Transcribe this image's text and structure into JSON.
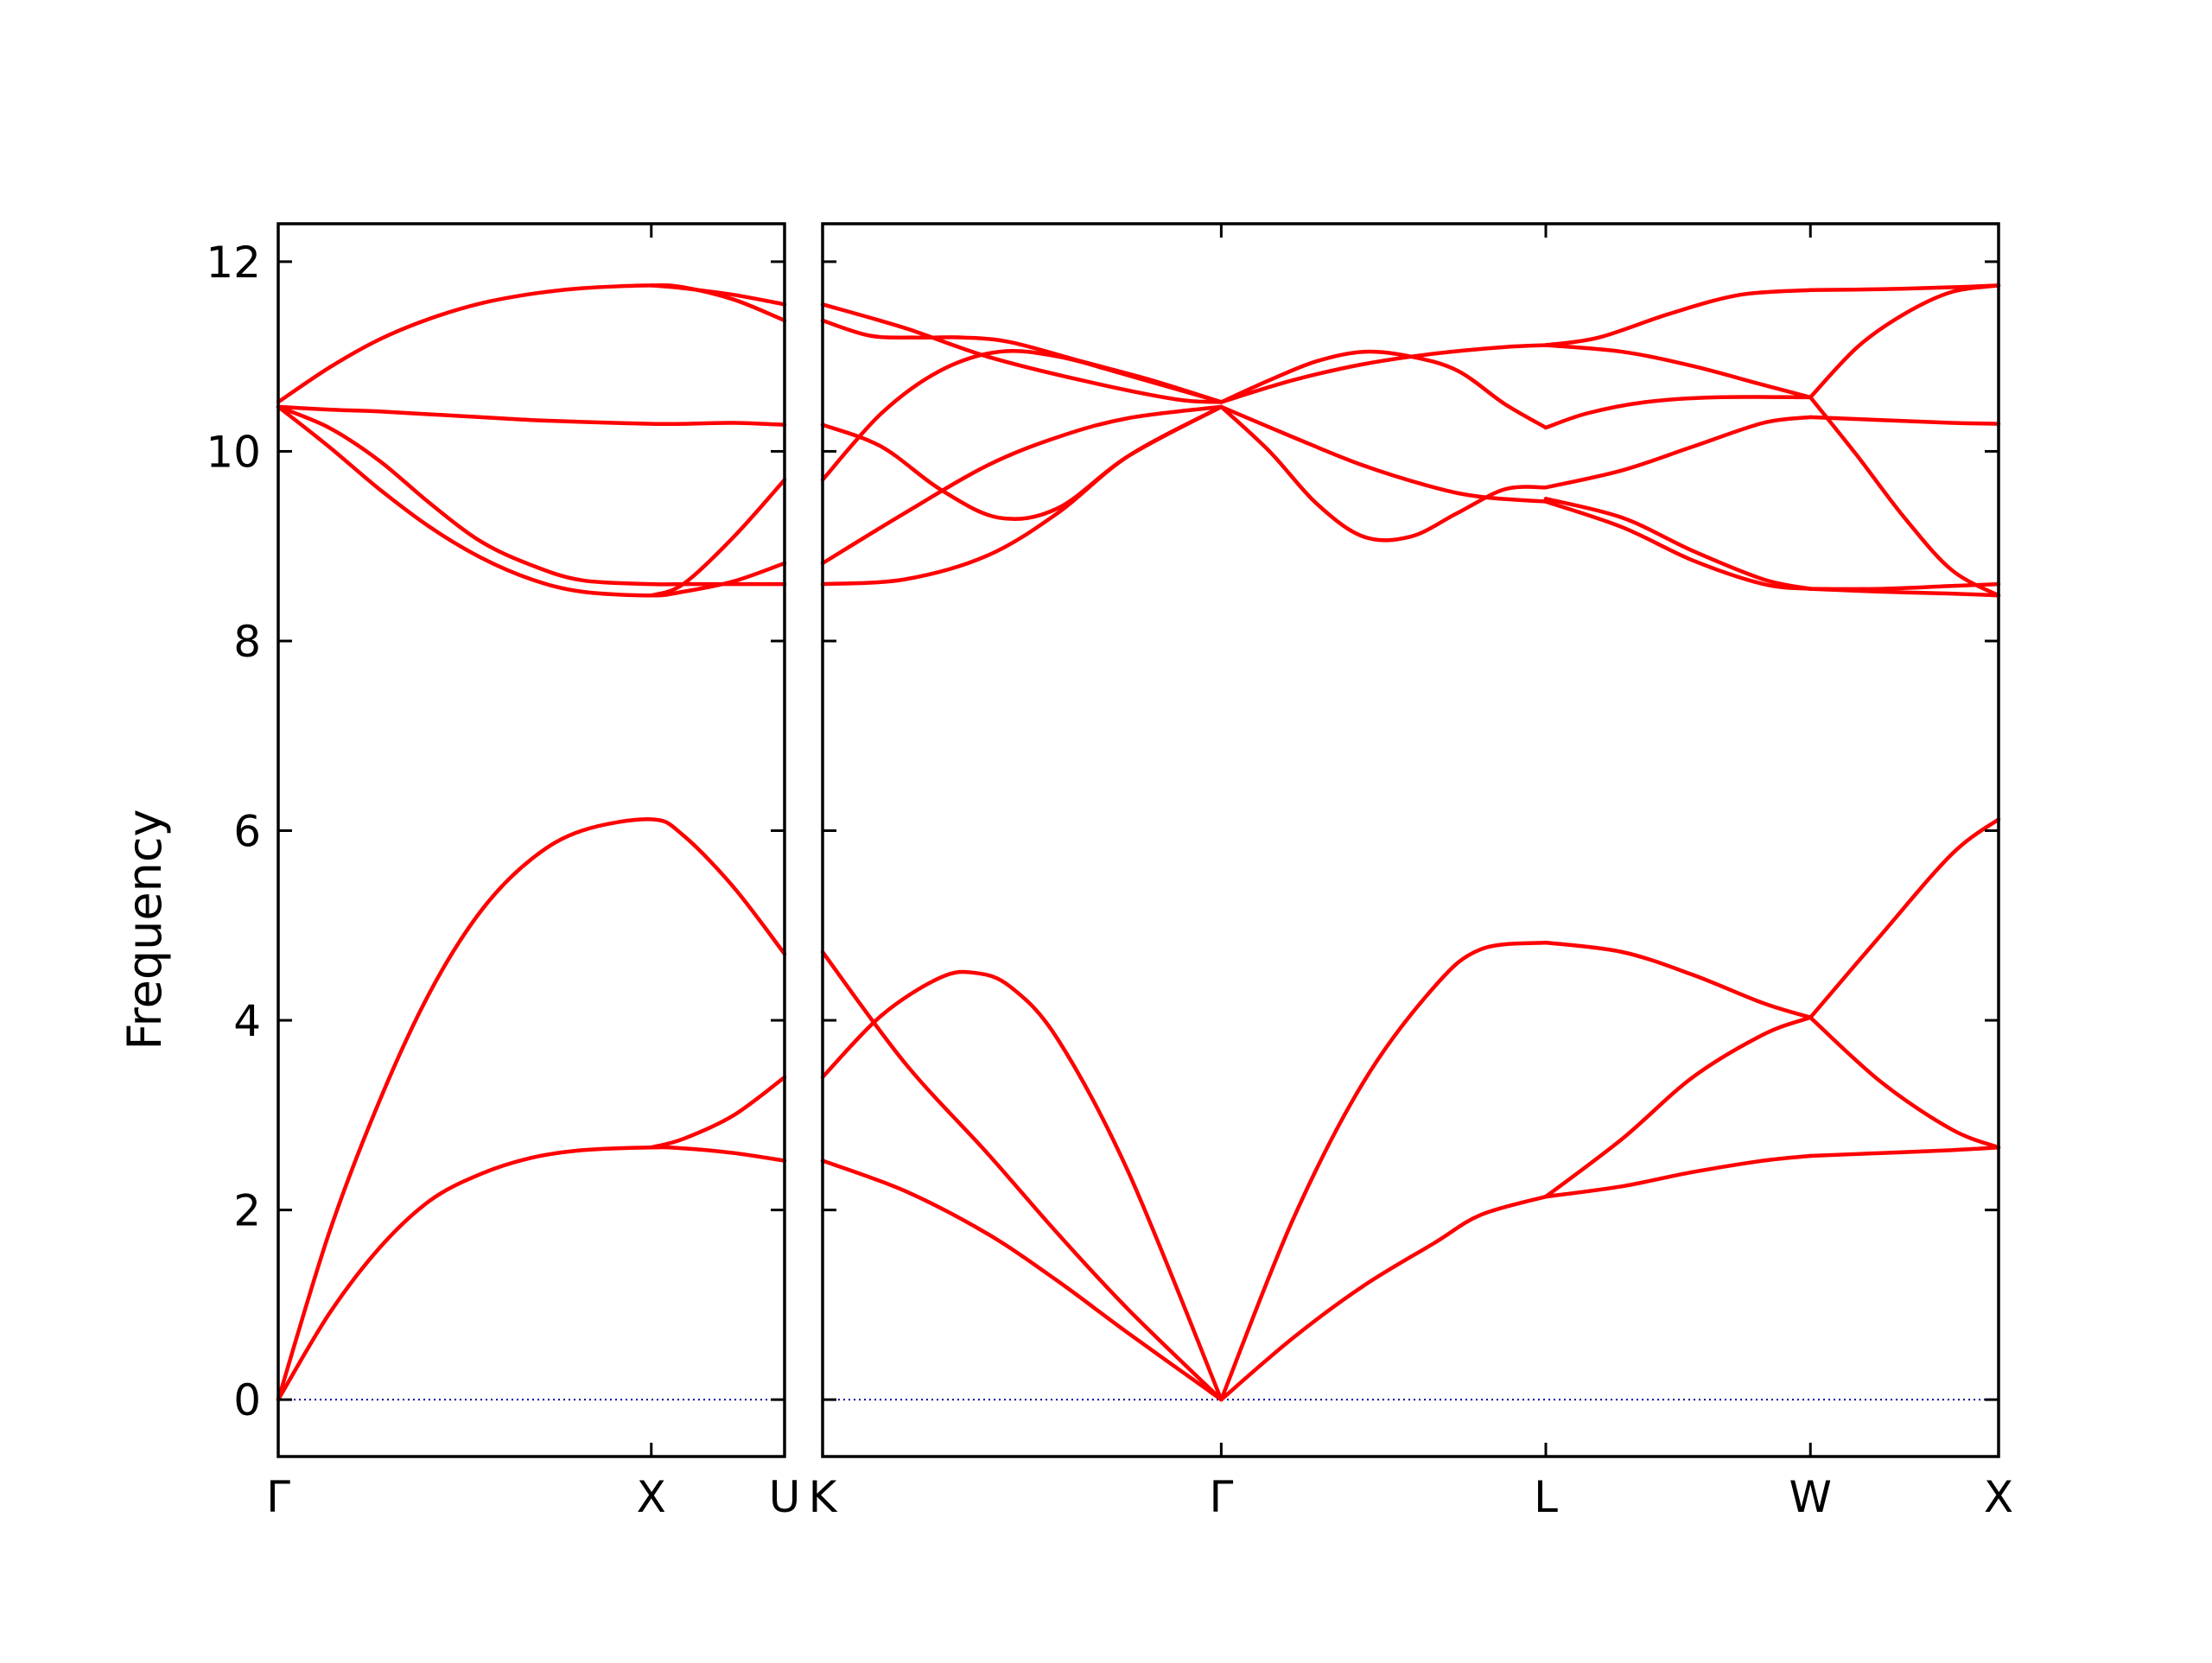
{
  "chart_data": {
    "type": "line",
    "title": "",
    "ylabel": "Frequency",
    "ylim": [
      -0.6,
      12.4
    ],
    "yticks": [
      0,
      2,
      4,
      6,
      8,
      10,
      12
    ],
    "colors": {
      "bands": "#ff0000",
      "zero_line": "#0000aa",
      "axes": "#000000"
    },
    "grid": false,
    "panels": [
      {
        "name": "Γ-X-U",
        "xlim": [
          0,
          1
        ],
        "tick_positions": [
          0,
          0.7368,
          1
        ],
        "tick_labels": [
          "Γ",
          "X",
          "U"
        ],
        "series": [
          {
            "x": [
              0,
              0.1,
              0.2,
              0.3,
              0.4,
              0.5,
              0.6,
              0.7368,
              0.8,
              0.9,
              1
            ],
            "y": [
              0,
              0.9,
              1.6,
              2.1,
              2.38,
              2.55,
              2.63,
              2.66,
              2.65,
              2.6,
              2.52
            ]
          },
          {
            "x": [
              0,
              0.1,
              0.2,
              0.3,
              0.4,
              0.5,
              0.6,
              0.7368,
              0.8,
              0.9,
              1
            ],
            "y": [
              0,
              1.75,
              3.15,
              4.3,
              5.15,
              5.7,
              6.0,
              6.12,
              5.95,
              5.4,
              4.7
            ]
          },
          {
            "x": [
              0,
              0.1,
              0.2,
              0.3,
              0.4,
              0.5,
              0.6,
              0.7368,
              0.8,
              0.9,
              1
            ],
            "y": [
              10.47,
              10.05,
              9.6,
              9.2,
              8.88,
              8.65,
              8.52,
              8.48,
              8.52,
              8.63,
              8.82
            ]
          },
          {
            "x": [
              0,
              0.1,
              0.2,
              0.3,
              0.4,
              0.5,
              0.6,
              0.7368,
              0.8,
              0.9,
              1
            ],
            "y": [
              10.47,
              10.25,
              9.9,
              9.45,
              9.05,
              8.8,
              8.64,
              8.6,
              8.6,
              8.6,
              8.6
            ]
          },
          {
            "x": [
              0,
              0.1,
              0.2,
              0.3,
              0.4,
              0.5,
              0.6,
              0.7368,
              0.8,
              0.9,
              1
            ],
            "y": [
              10.47,
              10.44,
              10.42,
              10.39,
              10.36,
              10.33,
              10.31,
              10.29,
              10.29,
              10.3,
              10.28
            ]
          },
          {
            "x": [
              0,
              0.1,
              0.2,
              0.3,
              0.4,
              0.5,
              0.6,
              0.7368,
              0.8,
              0.9,
              1
            ],
            "y": [
              10.52,
              10.88,
              11.18,
              11.4,
              11.56,
              11.66,
              11.72,
              11.75,
              11.73,
              11.6,
              11.38
            ]
          },
          {
            "x": [
              0.7368,
              0.8,
              0.9,
              1
            ],
            "y": [
              8.48,
              8.6,
              9.1,
              9.7
            ]
          },
          {
            "x": [
              0.7368,
              0.8,
              0.9,
              1
            ],
            "y": [
              2.66,
              2.75,
              3.0,
              3.4
            ]
          },
          {
            "x": [
              0.7368,
              0.8,
              0.9,
              1
            ],
            "y": [
              11.75,
              11.72,
              11.65,
              11.55
            ]
          }
        ]
      },
      {
        "name": "K-Γ-L-W-X",
        "xlim": [
          0,
          1
        ],
        "tick_positions": [
          0,
          0.339,
          0.615,
          0.84,
          1
        ],
        "tick_labels": [
          "K",
          "Γ",
          "L",
          "W",
          "X"
        ],
        "series": [
          {
            "x": [
              0,
              0.07,
              0.14,
              0.2,
              0.26,
              0.339
            ],
            "y": [
              2.52,
              2.2,
              1.75,
              1.25,
              0.7,
              0
            ]
          },
          {
            "x": [
              0,
              0.07,
              0.14,
              0.2,
              0.26,
              0.339
            ],
            "y": [
              4.72,
              3.55,
              2.6,
              1.75,
              0.95,
              0
            ]
          },
          {
            "x": [
              0,
              0.05,
              0.1,
              0.13,
              0.16,
              0.2,
              0.26,
              0.339
            ],
            "y": [
              3.4,
              4.05,
              4.45,
              4.5,
              4.35,
              3.8,
              2.4,
              0
            ]
          },
          {
            "x": [
              0,
              0.07,
              0.14,
              0.2,
              0.26,
              0.339
            ],
            "y": [
              8.6,
              8.65,
              8.9,
              9.35,
              9.95,
              10.47
            ]
          },
          {
            "x": [
              0,
              0.07,
              0.14,
              0.2,
              0.26,
              0.339
            ],
            "y": [
              8.82,
              9.35,
              9.85,
              10.15,
              10.35,
              10.47
            ]
          },
          {
            "x": [
              0,
              0.05,
              0.1,
              0.15,
              0.2,
              0.26,
              0.339
            ],
            "y": [
              10.28,
              10.05,
              9.6,
              9.3,
              9.4,
              9.95,
              10.47
            ]
          },
          {
            "x": [
              0,
              0.05,
              0.1,
              0.15,
              0.2,
              0.26,
              0.339
            ],
            "y": [
              9.7,
              10.4,
              10.85,
              11.05,
              11.0,
              10.8,
              10.52
            ]
          },
          {
            "x": [
              0,
              0.04,
              0.08,
              0.12,
              0.16,
              0.22,
              0.28,
              0.339
            ],
            "y": [
              11.38,
              11.22,
              11.2,
              11.2,
              11.15,
              10.95,
              10.75,
              10.52
            ]
          },
          {
            "x": [
              0,
              0.07,
              0.14,
              0.22,
              0.3,
              0.339
            ],
            "y": [
              11.55,
              11.3,
              11.0,
              10.75,
              10.55,
              10.52
            ]
          },
          {
            "x": [
              0.339,
              0.4,
              0.46,
              0.52,
              0.56,
              0.615
            ],
            "y": [
              0,
              1.9,
              3.35,
              4.35,
              4.75,
              4.82
            ]
          },
          {
            "x": [
              0.339,
              0.4,
              0.46,
              0.52,
              0.56,
              0.615
            ],
            "y": [
              0,
              0.65,
              1.2,
              1.65,
              1.95,
              2.14
            ]
          },
          {
            "x": [
              0.339,
              0.4,
              0.46,
              0.52,
              0.56,
              0.615
            ],
            "y": [
              10.47,
              10.15,
              9.85,
              9.62,
              9.52,
              9.47
            ]
          },
          {
            "x": [
              0.339,
              0.38,
              0.42,
              0.46,
              0.5,
              0.54,
              0.58,
              0.615
            ],
            "y": [
              10.47,
              10.0,
              9.45,
              9.1,
              9.1,
              9.35,
              9.6,
              9.62
            ]
          },
          {
            "x": [
              0.339,
              0.38,
              0.42,
              0.46,
              0.5,
              0.54,
              0.58,
              0.615
            ],
            "y": [
              10.52,
              10.75,
              10.95,
              11.05,
              11.0,
              10.85,
              10.5,
              10.25
            ]
          },
          {
            "x": [
              0.339,
              0.4,
              0.46,
              0.52,
              0.58,
              0.615
            ],
            "y": [
              10.52,
              10.75,
              10.92,
              11.03,
              11.1,
              11.12
            ]
          },
          {
            "x": [
              0.615,
              0.68,
              0.74,
              0.8,
              0.84
            ],
            "y": [
              2.14,
              2.25,
              2.4,
              2.52,
              2.57
            ]
          },
          {
            "x": [
              0.615,
              0.68,
              0.74,
              0.8,
              0.84
            ],
            "y": [
              2.14,
              2.75,
              3.4,
              3.85,
              4.03
            ]
          },
          {
            "x": [
              0.615,
              0.68,
              0.74,
              0.8,
              0.84
            ],
            "y": [
              4.82,
              4.72,
              4.48,
              4.18,
              4.03
            ]
          },
          {
            "x": [
              0.615,
              0.68,
              0.74,
              0.8,
              0.84
            ],
            "y": [
              9.47,
              9.2,
              8.85,
              8.6,
              8.55
            ]
          },
          {
            "x": [
              0.615,
              0.68,
              0.74,
              0.8,
              0.84
            ],
            "y": [
              9.5,
              9.3,
              8.95,
              8.65,
              8.55
            ]
          },
          {
            "x": [
              0.615,
              0.68,
              0.74,
              0.8,
              0.84
            ],
            "y": [
              9.62,
              9.8,
              10.05,
              10.3,
              10.36
            ]
          },
          {
            "x": [
              0.615,
              0.65,
              0.7,
              0.76,
              0.84
            ],
            "y": [
              10.25,
              10.4,
              10.52,
              10.57,
              10.57
            ]
          },
          {
            "x": [
              0.615,
              0.68,
              0.74,
              0.8,
              0.84
            ],
            "y": [
              11.12,
              11.05,
              10.9,
              10.7,
              10.57
            ]
          },
          {
            "x": [
              0.615,
              0.66,
              0.72,
              0.78,
              0.84
            ],
            "y": [
              11.12,
              11.2,
              11.45,
              11.65,
              11.7
            ]
          },
          {
            "x": [
              0.84,
              0.9,
              0.96,
              1
            ],
            "y": [
              2.57,
              2.6,
              2.63,
              2.66
            ]
          },
          {
            "x": [
              0.84,
              0.9,
              0.96,
              1
            ],
            "y": [
              4.03,
              3.35,
              2.85,
              2.66
            ]
          },
          {
            "x": [
              0.84,
              0.9,
              0.96,
              1
            ],
            "y": [
              4.03,
              4.9,
              5.75,
              6.12
            ]
          },
          {
            "x": [
              0.84,
              0.9,
              0.96,
              1
            ],
            "y": [
              8.55,
              8.55,
              8.58,
              8.6
            ]
          },
          {
            "x": [
              0.84,
              0.9,
              0.96,
              1
            ],
            "y": [
              8.55,
              8.52,
              8.5,
              8.48
            ]
          },
          {
            "x": [
              0.84,
              0.9,
              0.96,
              1
            ],
            "y": [
              10.36,
              10.33,
              10.3,
              10.29
            ]
          },
          {
            "x": [
              0.84,
              0.88,
              0.92,
              0.96,
              1
            ],
            "y": [
              10.57,
              9.95,
              9.3,
              8.75,
              8.48
            ]
          },
          {
            "x": [
              0.84,
              0.88,
              0.92,
              0.96,
              1
            ],
            "y": [
              10.57,
              11.1,
              11.45,
              11.68,
              11.75
            ]
          },
          {
            "x": [
              0.84,
              0.9,
              0.96,
              1
            ],
            "y": [
              11.7,
              11.71,
              11.73,
              11.75
            ]
          }
        ]
      }
    ]
  }
}
